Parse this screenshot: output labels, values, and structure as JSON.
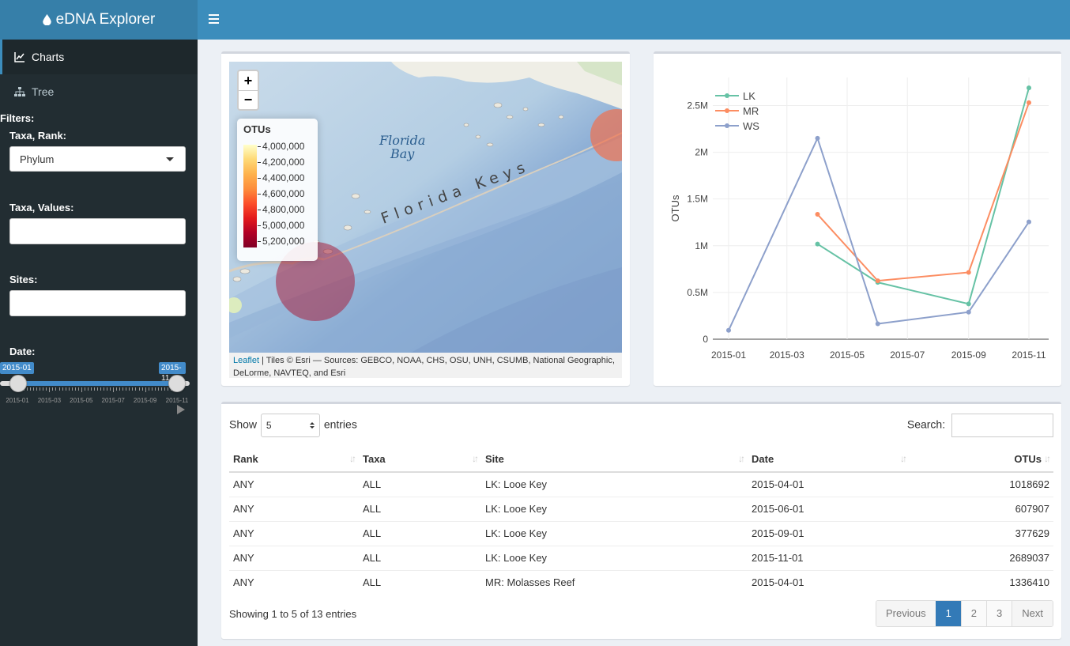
{
  "app": {
    "title": "eDNA Explorer"
  },
  "sidebar": {
    "items": [
      {
        "label": "Charts",
        "icon": "line-chart-icon"
      },
      {
        "label": "Tree",
        "icon": "sitemap-icon"
      }
    ],
    "filters_label": "Filters:",
    "taxa_rank_label": "Taxa, Rank:",
    "taxa_rank_value": "Phylum",
    "taxa_values_label": "Taxa, Values:",
    "sites_label": "Sites:",
    "date_label": "Date:",
    "date_slider": {
      "min_label": "2015-01",
      "max_label": "2015-11",
      "from_fraction": 0.0,
      "to_fraction": 1.0,
      "tick_labels": [
        "2015-01",
        "2015-03",
        "2015-05",
        "2015-07",
        "2015-09",
        "2015-11"
      ]
    }
  },
  "map": {
    "zoom_in": "+",
    "zoom_out": "−",
    "place_labels": {
      "bay": "Florida Bay",
      "keys": "Florida Keys"
    },
    "legend": {
      "title": "OTUs",
      "labels": [
        "4,000,000",
        "4,200,000",
        "4,400,000",
        "4,600,000",
        "4,800,000",
        "5,000,000",
        "5,200,000"
      ]
    },
    "attribution": {
      "link": "Leaflet",
      "text": " | Tiles © Esri — Sources: GEBCO, NOAA, CHS, OSU, UNH, CSUMB, National Geographic, DeLorme, NAVTEQ, and Esri"
    }
  },
  "chart_data": {
    "type": "line",
    "x": [
      "2015-01",
      "2015-04",
      "2015-06",
      "2015-09",
      "2015-11"
    ],
    "xticks": [
      "2015-01",
      "2015-03",
      "2015-05",
      "2015-07",
      "2015-09",
      "2015-11"
    ],
    "ylabel": "OTUs",
    "yticks": [
      "0",
      "0.5M",
      "1M",
      "1.5M",
      "2M",
      "2.5M"
    ],
    "ylim": [
      0,
      2800000
    ],
    "series": [
      {
        "name": "LK",
        "color": "#66c2a5",
        "points": [
          [
            "2015-04-01",
            1018692
          ],
          [
            "2015-06-01",
            607907
          ],
          [
            "2015-09-01",
            377629
          ],
          [
            "2015-11-01",
            2689037
          ]
        ]
      },
      {
        "name": "MR",
        "color": "#fc8d62",
        "points": [
          [
            "2015-04-01",
            1336410
          ],
          [
            "2015-06-01",
            625000
          ],
          [
            "2015-09-01",
            715000
          ],
          [
            "2015-11-01",
            2530000
          ]
        ]
      },
      {
        "name": "WS",
        "color": "#8da0cb",
        "points": [
          [
            "2015-01-01",
            95000
          ],
          [
            "2015-04-01",
            2150000
          ],
          [
            "2015-06-01",
            165000
          ],
          [
            "2015-09-01",
            290000
          ],
          [
            "2015-11-01",
            1255000
          ]
        ]
      }
    ],
    "legend_position": "top-left",
    "grid": true
  },
  "table": {
    "show_label": "Show",
    "length_value": "5",
    "entries_label": "entries",
    "search_label": "Search:",
    "columns": [
      "Rank",
      "Taxa",
      "Site",
      "Date",
      "OTUs"
    ],
    "rows": [
      [
        "ANY",
        "ALL",
        "LK: Looe Key",
        "2015-04-01",
        "1018692"
      ],
      [
        "ANY",
        "ALL",
        "LK: Looe Key",
        "2015-06-01",
        "607907"
      ],
      [
        "ANY",
        "ALL",
        "LK: Looe Key",
        "2015-09-01",
        "377629"
      ],
      [
        "ANY",
        "ALL",
        "LK: Looe Key",
        "2015-11-01",
        "2689037"
      ],
      [
        "ANY",
        "ALL",
        "MR: Molasses Reef",
        "2015-04-01",
        "1336410"
      ]
    ],
    "info": "Showing 1 to 5 of 13 entries",
    "pagination": {
      "previous": "Previous",
      "pages": [
        "1",
        "2",
        "3"
      ],
      "next": "Next"
    }
  }
}
